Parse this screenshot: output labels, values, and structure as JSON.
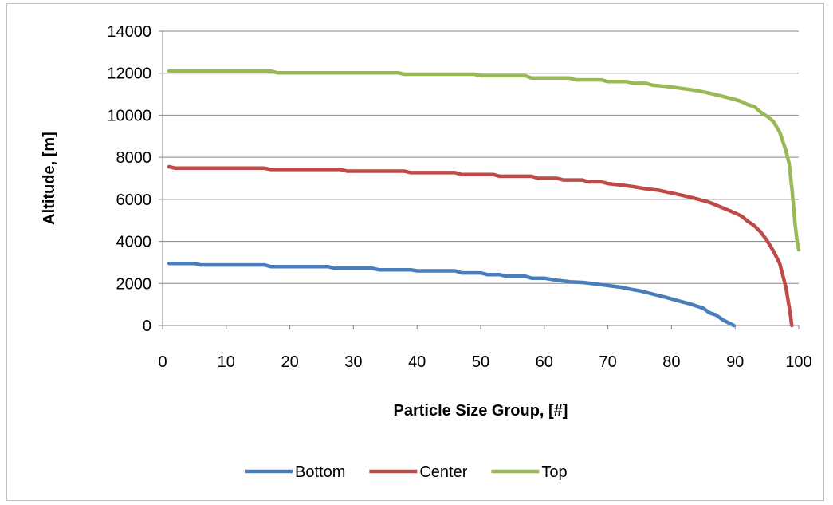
{
  "chart_data": {
    "type": "line",
    "xlabel": "Particle Size Group, [#]",
    "ylabel": "Altitude, [m]",
    "xlim": [
      0,
      100
    ],
    "ylim": [
      0,
      14000
    ],
    "xticks": [
      0,
      10,
      20,
      30,
      40,
      50,
      60,
      70,
      80,
      90,
      100
    ],
    "yticks": [
      0,
      2000,
      4000,
      6000,
      8000,
      10000,
      12000,
      14000
    ],
    "grid": "horizontal",
    "legend_position": "bottom",
    "series": [
      {
        "name": "Bottom",
        "color": "#4a7ebb",
        "points": [
          [
            1,
            2950
          ],
          [
            5,
            2950
          ],
          [
            6,
            2880
          ],
          [
            16,
            2880
          ],
          [
            17,
            2800
          ],
          [
            26,
            2800
          ],
          [
            27,
            2720
          ],
          [
            33,
            2720
          ],
          [
            34,
            2650
          ],
          [
            39,
            2650
          ],
          [
            40,
            2600
          ],
          [
            46,
            2600
          ],
          [
            47,
            2500
          ],
          [
            50,
            2500
          ],
          [
            51,
            2420
          ],
          [
            53,
            2420
          ],
          [
            54,
            2340
          ],
          [
            57,
            2340
          ],
          [
            58,
            2250
          ],
          [
            60,
            2250
          ],
          [
            62,
            2150
          ],
          [
            64,
            2080
          ],
          [
            66,
            2050
          ],
          [
            68,
            1980
          ],
          [
            70,
            1900
          ],
          [
            72,
            1820
          ],
          [
            74,
            1700
          ],
          [
            75,
            1650
          ],
          [
            77,
            1500
          ],
          [
            79,
            1350
          ],
          [
            81,
            1180
          ],
          [
            83,
            1020
          ],
          [
            85,
            820
          ],
          [
            86,
            600
          ],
          [
            87,
            500
          ],
          [
            88,
            280
          ],
          [
            89,
            120
          ],
          [
            89.8,
            0
          ]
        ]
      },
      {
        "name": "Center",
        "color": "#be4b48",
        "points": [
          [
            1,
            7550
          ],
          [
            2,
            7480
          ],
          [
            16,
            7480
          ],
          [
            17,
            7420
          ],
          [
            28,
            7420
          ],
          [
            29,
            7340
          ],
          [
            38,
            7340
          ],
          [
            39,
            7270
          ],
          [
            46,
            7270
          ],
          [
            47,
            7180
          ],
          [
            52,
            7180
          ],
          [
            53,
            7100
          ],
          [
            58,
            7100
          ],
          [
            59,
            7000
          ],
          [
            62,
            7000
          ],
          [
            63,
            6920
          ],
          [
            66,
            6920
          ],
          [
            67,
            6830
          ],
          [
            69,
            6830
          ],
          [
            70,
            6750
          ],
          [
            72,
            6680
          ],
          [
            74,
            6600
          ],
          [
            76,
            6500
          ],
          [
            78,
            6430
          ],
          [
            80,
            6300
          ],
          [
            82,
            6170
          ],
          [
            84,
            6020
          ],
          [
            86,
            5850
          ],
          [
            88,
            5600
          ],
          [
            90,
            5350
          ],
          [
            91,
            5200
          ],
          [
            92,
            4950
          ],
          [
            93,
            4750
          ],
          [
            94,
            4450
          ],
          [
            95,
            4050
          ],
          [
            96,
            3550
          ],
          [
            97,
            2950
          ],
          [
            98,
            1800
          ],
          [
            98.7,
            500
          ],
          [
            98.9,
            0
          ]
        ]
      },
      {
        "name": "Top",
        "color": "#98b954",
        "points": [
          [
            1,
            12100
          ],
          [
            17,
            12100
          ],
          [
            18,
            12020
          ],
          [
            37,
            12020
          ],
          [
            38,
            11950
          ],
          [
            49,
            11950
          ],
          [
            50,
            11880
          ],
          [
            57,
            11880
          ],
          [
            58,
            11770
          ],
          [
            64,
            11770
          ],
          [
            65,
            11680
          ],
          [
            69,
            11680
          ],
          [
            70,
            11600
          ],
          [
            73,
            11600
          ],
          [
            74,
            11520
          ],
          [
            76,
            11520
          ],
          [
            77,
            11430
          ],
          [
            79,
            11380
          ],
          [
            81,
            11300
          ],
          [
            83,
            11220
          ],
          [
            84,
            11170
          ],
          [
            86,
            11050
          ],
          [
            88,
            10900
          ],
          [
            90,
            10750
          ],
          [
            91,
            10650
          ],
          [
            92,
            10500
          ],
          [
            93,
            10420
          ],
          [
            94,
            10150
          ],
          [
            95,
            9950
          ],
          [
            96,
            9700
          ],
          [
            97,
            9200
          ],
          [
            98,
            8300
          ],
          [
            98.5,
            7700
          ],
          [
            99,
            6300
          ],
          [
            99.4,
            4900
          ],
          [
            99.7,
            4100
          ],
          [
            100,
            3600
          ]
        ]
      }
    ]
  }
}
